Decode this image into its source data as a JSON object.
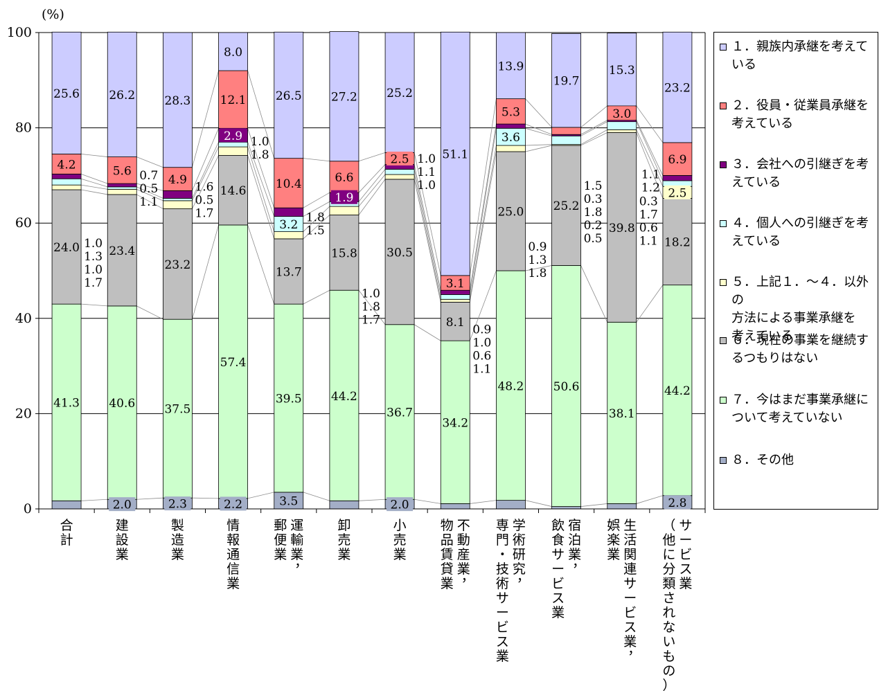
{
  "chart_data": {
    "type": "bar",
    "stacked": true,
    "title": "",
    "xlabel": "",
    "ylabel": "(%)",
    "ylim": [
      0,
      100
    ],
    "yticks": [
      "0",
      "20",
      "40",
      "60",
      "80",
      "100"
    ],
    "grid": true,
    "legend_position": "right",
    "categories": [
      "合計",
      "建設業",
      "製造業",
      "情報通信業",
      "運輸業，郵便業",
      "卸売業",
      "小売業",
      "不動産業，物品賃貸業",
      "学術研究，専門・技術サービス業",
      "宿泊業，飲食サービス業",
      "生活関連サービス業，娯楽業",
      "サービス業（他に分類されないもの）"
    ],
    "category_lines": [
      [
        "合計"
      ],
      [
        "建設業"
      ],
      [
        "製造業"
      ],
      [
        "情報通信業"
      ],
      [
        "運輸業，",
        "郵便業"
      ],
      [
        "卸売業"
      ],
      [
        "小売業"
      ],
      [
        "不動産業，",
        "物品賃貸業"
      ],
      [
        "学術研究，",
        "専門・技術サービス業"
      ],
      [
        "宿泊業，",
        "飲食サービス業"
      ],
      [
        "生活関連サービス業，",
        "娯楽業"
      ],
      [
        "サービス業",
        "（他に分類されないもの）"
      ]
    ],
    "series": [
      {
        "name": "８．その他",
        "color": "#a3aec7",
        "values": [
          1.7,
          2.0,
          2.3,
          2.2,
          3.5,
          1.7,
          2.0,
          1.1,
          1.8,
          0.5,
          1.1,
          2.8
        ]
      },
      {
        "name": "７．今はまだ事業承継について考えていない",
        "color": "#ccffcc",
        "values": [
          41.3,
          40.6,
          37.5,
          57.4,
          39.5,
          44.2,
          36.7,
          34.2,
          48.2,
          50.6,
          38.1,
          44.2
        ]
      },
      {
        "name": "６．現在の事業を継続するつもりはない",
        "color": "#bfbfbf",
        "values": [
          24.0,
          23.4,
          23.2,
          14.6,
          13.7,
          15.8,
          30.5,
          8.1,
          25.0,
          25.2,
          39.8,
          18.2
        ]
      },
      {
        "name": "５．上記１．～４．以外の方法による事業承継を考えている",
        "color": "#ffffcc",
        "values": [
          1.0,
          1.1,
          1.7,
          1.8,
          1.5,
          1.8,
          1.0,
          0.6,
          1.3,
          0.2,
          0.6,
          2.5
        ]
      },
      {
        "name": "４．個人への引継ぎを考えている",
        "color": "#ccffff",
        "values": [
          1.3,
          0.5,
          0.5,
          1.0,
          3.2,
          1.0,
          1.1,
          1.0,
          3.6,
          1.8,
          1.7,
          1.2
        ]
      },
      {
        "name": "３．会社への引継ぎを考えている",
        "color": "#800080",
        "values": [
          1.0,
          0.7,
          1.6,
          2.9,
          1.8,
          1.9,
          1.0,
          0.9,
          0.9,
          0.3,
          0.3,
          1.1
        ]
      },
      {
        "name": "２．役員・従業員承継を考えている",
        "color": "#ff8080",
        "values": [
          4.2,
          5.6,
          4.9,
          12.1,
          10.4,
          6.6,
          2.5,
          3.1,
          5.3,
          1.5,
          3.0,
          6.9
        ]
      },
      {
        "name": "１．親族内承継を考えている",
        "color": "#ccccff",
        "values": [
          25.6,
          26.2,
          28.3,
          8.0,
          26.5,
          27.2,
          25.2,
          51.1,
          13.9,
          19.7,
          15.3,
          23.2
        ]
      }
    ]
  },
  "legend": {
    "items": [
      {
        "lines": [
          "１．親族内承継を考えて",
          "いる"
        ],
        "color": "#ccccff"
      },
      {
        "lines": [
          "２．役員・従業員承継を",
          "考えている"
        ],
        "color": "#ff8080"
      },
      {
        "lines": [
          "３．会社への引継ぎを考",
          "えている"
        ],
        "color": "#800080"
      },
      {
        "lines": [
          "４．個人への引継ぎを考",
          "えている"
        ],
        "color": "#ccffff"
      },
      {
        "lines": [
          "５．上記１．～４．以外の",
          "方法による事業承継を",
          "考えている"
        ],
        "color": "#ffffcc"
      },
      {
        "lines": [
          "６．現在の事業を継続す",
          "るつもりはない"
        ],
        "color": "#bfbfbf"
      },
      {
        "lines": [
          "７．今はまだ事業承継に",
          "ついて考えていない"
        ],
        "color": "#ccffcc"
      },
      {
        "lines": [
          "８．その他"
        ],
        "color": "#a3aec7"
      }
    ]
  }
}
